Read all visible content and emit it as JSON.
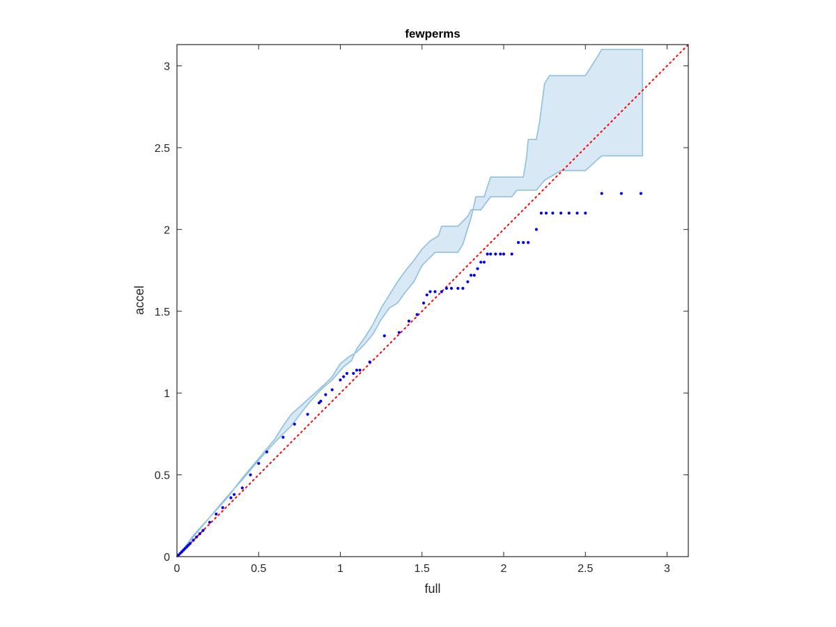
{
  "chart_data": {
    "type": "scatter",
    "title": "fewperms",
    "xlabel": "full",
    "ylabel": "accel",
    "xlim": [
      0,
      3.13
    ],
    "ylim": [
      0,
      3.13
    ],
    "xticks": [
      "0",
      "0.5",
      "1",
      "1.5",
      "2",
      "2.5",
      "3"
    ],
    "yticks": [
      "0",
      "0.5",
      "1",
      "1.5",
      "2",
      "2.5",
      "3"
    ],
    "grid": false,
    "legend": "none",
    "colors": {
      "points": "#0000ee",
      "reference_line": "#ff0000",
      "band_fill": "#d8e8f4",
      "band_edge": "#8dbfdf"
    },
    "reference_line": {
      "style": "dotted",
      "x": [
        0,
        3.13
      ],
      "y": [
        0,
        3.13
      ]
    },
    "band": {
      "upper": [
        [
          0,
          0
        ],
        [
          0.05,
          0.06
        ],
        [
          0.1,
          0.13
        ],
        [
          0.2,
          0.24
        ],
        [
          0.3,
          0.35
        ],
        [
          0.4,
          0.48
        ],
        [
          0.5,
          0.6
        ],
        [
          0.6,
          0.72
        ],
        [
          0.65,
          0.8
        ],
        [
          0.7,
          0.87
        ],
        [
          0.8,
          0.96
        ],
        [
          0.9,
          1.05
        ],
        [
          0.95,
          1.1
        ],
        [
          1.0,
          1.18
        ],
        [
          1.05,
          1.22
        ],
        [
          1.1,
          1.25
        ],
        [
          1.15,
          1.3
        ],
        [
          1.2,
          1.36
        ],
        [
          1.25,
          1.45
        ],
        [
          1.3,
          1.52
        ],
        [
          1.35,
          1.55
        ],
        [
          1.4,
          1.62
        ],
        [
          1.45,
          1.68
        ],
        [
          1.5,
          1.78
        ],
        [
          1.55,
          1.83
        ],
        [
          1.58,
          1.86
        ],
        [
          1.72,
          1.86
        ],
        [
          1.75,
          1.91
        ],
        [
          1.8,
          2.07
        ],
        [
          1.83,
          2.2
        ],
        [
          1.88,
          2.2
        ],
        [
          1.92,
          2.32
        ],
        [
          2.12,
          2.32
        ],
        [
          2.14,
          2.44
        ],
        [
          2.15,
          2.55
        ],
        [
          2.2,
          2.55
        ],
        [
          2.22,
          2.66
        ],
        [
          2.25,
          2.89
        ],
        [
          2.28,
          2.94
        ],
        [
          2.5,
          2.94
        ],
        [
          2.57,
          3.05
        ],
        [
          2.6,
          3.1
        ],
        [
          2.85,
          3.1
        ]
      ],
      "lower": [
        [
          2.85,
          2.45
        ],
        [
          2.6,
          2.45
        ],
        [
          2.5,
          2.36
        ],
        [
          2.35,
          2.36
        ],
        [
          2.25,
          2.3
        ],
        [
          2.2,
          2.24
        ],
        [
          2.08,
          2.24
        ],
        [
          2.05,
          2.2
        ],
        [
          1.92,
          2.2
        ],
        [
          1.86,
          2.12
        ],
        [
          1.8,
          2.12
        ],
        [
          1.78,
          2.08
        ],
        [
          1.72,
          2.02
        ],
        [
          1.62,
          2.02
        ],
        [
          1.6,
          1.96
        ],
        [
          1.55,
          1.93
        ],
        [
          1.5,
          1.88
        ],
        [
          1.45,
          1.81
        ],
        [
          1.4,
          1.75
        ],
        [
          1.35,
          1.68
        ],
        [
          1.3,
          1.6
        ],
        [
          1.25,
          1.52
        ],
        [
          1.2,
          1.42
        ],
        [
          1.15,
          1.34
        ],
        [
          1.1,
          1.27
        ],
        [
          1.07,
          1.2
        ],
        [
          1.02,
          1.16
        ],
        [
          0.95,
          1.08
        ],
        [
          0.88,
          1.02
        ],
        [
          0.8,
          0.93
        ],
        [
          0.7,
          0.8
        ],
        [
          0.6,
          0.7
        ],
        [
          0.5,
          0.59
        ],
        [
          0.4,
          0.47
        ],
        [
          0.3,
          0.36
        ],
        [
          0.2,
          0.24
        ],
        [
          0.1,
          0.12
        ],
        [
          0,
          0
        ]
      ]
    },
    "points": [
      [
        0.01,
        0.01
      ],
      [
        0.02,
        0.02
      ],
      [
        0.03,
        0.03
      ],
      [
        0.04,
        0.04
      ],
      [
        0.05,
        0.05
      ],
      [
        0.06,
        0.06
      ],
      [
        0.07,
        0.07
      ],
      [
        0.08,
        0.08
      ],
      [
        0.1,
        0.1
      ],
      [
        0.12,
        0.12
      ],
      [
        0.14,
        0.14
      ],
      [
        0.16,
        0.16
      ],
      [
        0.2,
        0.21
      ],
      [
        0.24,
        0.26
      ],
      [
        0.28,
        0.3
      ],
      [
        0.33,
        0.36
      ],
      [
        0.35,
        0.38
      ],
      [
        0.4,
        0.42
      ],
      [
        0.45,
        0.5
      ],
      [
        0.5,
        0.57
      ],
      [
        0.55,
        0.64
      ],
      [
        0.65,
        0.73
      ],
      [
        0.72,
        0.81
      ],
      [
        0.8,
        0.87
      ],
      [
        0.87,
        0.94
      ],
      [
        0.88,
        0.95
      ],
      [
        0.91,
        0.99
      ],
      [
        0.95,
        1.02
      ],
      [
        1.0,
        1.08
      ],
      [
        1.02,
        1.1
      ],
      [
        1.04,
        1.12
      ],
      [
        1.08,
        1.12
      ],
      [
        1.1,
        1.14
      ],
      [
        1.12,
        1.14
      ],
      [
        1.18,
        1.19
      ],
      [
        1.27,
        1.35
      ],
      [
        1.36,
        1.37
      ],
      [
        1.42,
        1.44
      ],
      [
        1.47,
        1.48
      ],
      [
        1.51,
        1.55
      ],
      [
        1.53,
        1.6
      ],
      [
        1.55,
        1.62
      ],
      [
        1.58,
        1.62
      ],
      [
        1.62,
        1.62
      ],
      [
        1.65,
        1.64
      ],
      [
        1.68,
        1.64
      ],
      [
        1.72,
        1.64
      ],
      [
        1.75,
        1.64
      ],
      [
        1.78,
        1.68
      ],
      [
        1.8,
        1.72
      ],
      [
        1.82,
        1.72
      ],
      [
        1.84,
        1.76
      ],
      [
        1.86,
        1.8
      ],
      [
        1.88,
        1.8
      ],
      [
        1.9,
        1.85
      ],
      [
        1.92,
        1.85
      ],
      [
        1.95,
        1.85
      ],
      [
        1.98,
        1.85
      ],
      [
        2.0,
        1.85
      ],
      [
        2.05,
        1.85
      ],
      [
        2.09,
        1.92
      ],
      [
        2.12,
        1.92
      ],
      [
        2.15,
        1.92
      ],
      [
        2.2,
        2.0
      ],
      [
        2.23,
        2.1
      ],
      [
        2.26,
        2.1
      ],
      [
        2.3,
        2.1
      ],
      [
        2.35,
        2.1
      ],
      [
        2.4,
        2.1
      ],
      [
        2.45,
        2.1
      ],
      [
        2.5,
        2.1
      ],
      [
        2.6,
        2.22
      ],
      [
        2.72,
        2.22
      ],
      [
        2.84,
        2.22
      ]
    ]
  }
}
